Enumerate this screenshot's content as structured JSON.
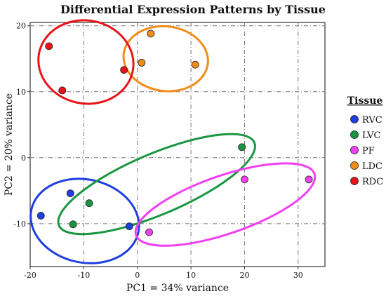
{
  "chart_data": {
    "type": "scatter",
    "title": "Differential Expression Patterns by Tissue",
    "xlabel": "PC1 = 34% variance",
    "ylabel": "PC2 = 20% variance",
    "xlim": [
      -20,
      35
    ],
    "ylim": [
      -16.5,
      20.5
    ],
    "x_ticks": [
      -20,
      -10,
      0,
      10,
      20,
      30
    ],
    "y_ticks": [
      -10,
      0,
      10,
      20
    ],
    "grid": true,
    "legend": {
      "title": "Tissue",
      "position": "right"
    },
    "series": [
      {
        "name": "RVC",
        "color": "#1f3fe0",
        "points": [
          [
            -18,
            -8.8
          ],
          [
            -12.5,
            -5.4
          ],
          [
            -1.5,
            -10.4
          ]
        ],
        "ellipse": {
          "cx": -9.8,
          "cy": -9.6,
          "rx": 10.2,
          "ry": 6.3,
          "angle": -12
        }
      },
      {
        "name": "LVC",
        "color": "#1a9641",
        "points": [
          [
            -12,
            -10.1
          ],
          [
            -9,
            -6.9
          ],
          [
            19.5,
            1.6
          ]
        ],
        "ellipse": {
          "cx": 3.6,
          "cy": -4.0,
          "rx": 19.8,
          "ry": 4.6,
          "angle": 23
        }
      },
      {
        "name": "PF",
        "color": "#f23ff2",
        "points": [
          [
            2.2,
            -11.3
          ],
          [
            20,
            -3.3
          ],
          [
            32,
            -3.3
          ]
        ],
        "ellipse": {
          "cx": 16.4,
          "cy": -7.1,
          "rx": 17.6,
          "ry": 4.4,
          "angle": 19
        }
      },
      {
        "name": "LDC",
        "color": "#f28c1a",
        "points": [
          [
            2.5,
            18.8
          ],
          [
            0.8,
            14.4
          ],
          [
            10.8,
            14.1
          ]
        ],
        "ellipse": {
          "cx": 5.3,
          "cy": 15.0,
          "rx": 7.9,
          "ry": 4.9,
          "angle": -7
        }
      },
      {
        "name": "RDC",
        "color": "#e8141a",
        "points": [
          [
            -16.5,
            16.9
          ],
          [
            -14,
            10.2
          ],
          [
            -2.5,
            13.3
          ]
        ],
        "ellipse": {
          "cx": -9.6,
          "cy": 14.5,
          "rx": 8.9,
          "ry": 6.3,
          "angle": -10
        }
      }
    ]
  }
}
